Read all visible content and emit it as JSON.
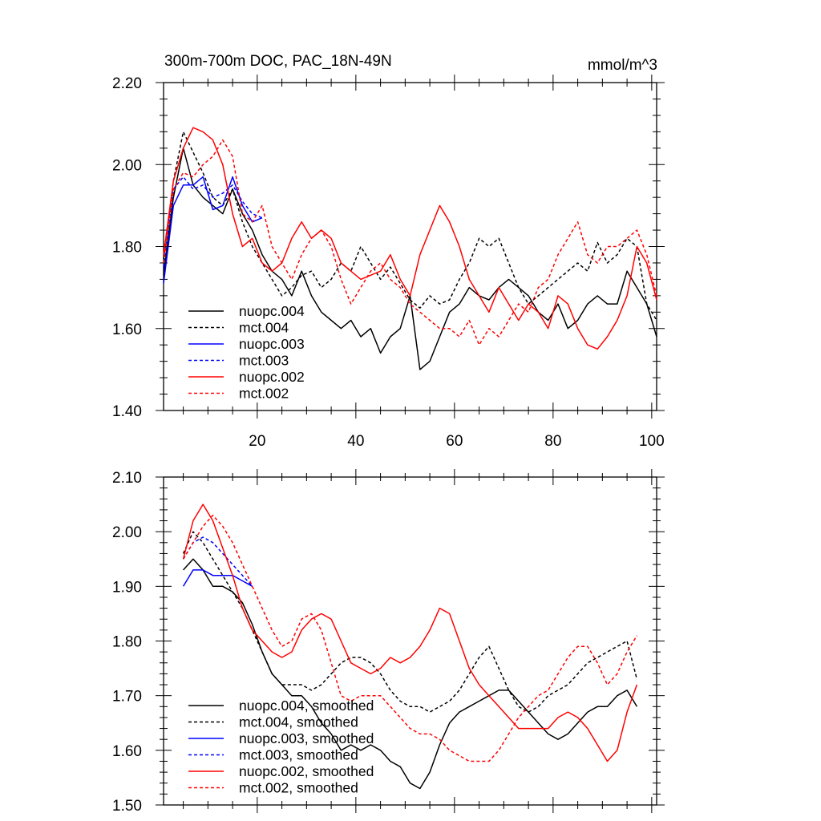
{
  "colors": {
    "black": "#000000",
    "blue": "#0000ff",
    "red": "#ff0000"
  },
  "chart_data": [
    {
      "type": "line",
      "title": "300m-700m DOC, PAC_18N-49N",
      "units": "mmol/m^3",
      "xlim": [
        1,
        101
      ],
      "ylim": [
        1.4,
        2.2
      ],
      "xticks": [
        20,
        40,
        60,
        80,
        100
      ],
      "yticks": [
        "1.40",
        "1.60",
        "1.80",
        "2.00",
        "2.20"
      ],
      "legend_position": "bottom-left",
      "series": [
        {
          "name": "nuopc.004",
          "color": "#000000",
          "dash": false,
          "x": [
            1,
            3,
            5,
            7,
            9,
            11,
            13,
            15,
            17,
            19,
            21,
            23,
            25,
            27,
            29,
            31,
            33,
            35,
            37,
            39,
            41,
            43,
            45,
            47,
            49,
            51,
            53,
            55,
            57,
            59,
            61,
            63,
            65,
            67,
            69,
            71,
            73,
            75,
            77,
            79,
            81,
            83,
            85,
            87,
            89,
            91,
            93,
            95,
            97,
            99,
            101
          ],
          "y": [
            1.73,
            1.92,
            2.04,
            1.95,
            1.92,
            1.9,
            1.88,
            1.94,
            1.88,
            1.84,
            1.78,
            1.74,
            1.72,
            1.68,
            1.74,
            1.68,
            1.64,
            1.62,
            1.6,
            1.62,
            1.58,
            1.6,
            1.54,
            1.58,
            1.6,
            1.68,
            1.5,
            1.52,
            1.58,
            1.64,
            1.66,
            1.7,
            1.68,
            1.67,
            1.7,
            1.72,
            1.7,
            1.68,
            1.64,
            1.62,
            1.66,
            1.6,
            1.62,
            1.66,
            1.68,
            1.66,
            1.66,
            1.74,
            1.7,
            1.66,
            1.58
          ]
        },
        {
          "name": "mct.004",
          "color": "#000000",
          "dash": true,
          "x": [
            1,
            3,
            5,
            7,
            9,
            11,
            13,
            15,
            17,
            19,
            21,
            23,
            25,
            27,
            29,
            31,
            33,
            35,
            37,
            39,
            41,
            43,
            45,
            47,
            49,
            51,
            53,
            55,
            57,
            59,
            61,
            63,
            65,
            67,
            69,
            71,
            73,
            75,
            77,
            79,
            81,
            83,
            85,
            87,
            89,
            91,
            93,
            95,
            97,
            99,
            101
          ],
          "y": [
            1.77,
            1.96,
            2.08,
            2.03,
            1.98,
            1.92,
            1.9,
            1.94,
            1.86,
            1.8,
            1.76,
            1.72,
            1.68,
            1.7,
            1.73,
            1.74,
            1.7,
            1.72,
            1.76,
            1.74,
            1.8,
            1.76,
            1.72,
            1.75,
            1.71,
            1.67,
            1.65,
            1.68,
            1.66,
            1.67,
            1.72,
            1.76,
            1.82,
            1.8,
            1.82,
            1.76,
            1.7,
            1.66,
            1.68,
            1.7,
            1.72,
            1.74,
            1.76,
            1.74,
            1.81,
            1.76,
            1.78,
            1.82,
            1.8,
            1.66,
            1.62
          ]
        },
        {
          "name": "nuopc.003",
          "color": "#0000ff",
          "dash": false,
          "x": [
            1,
            3,
            5,
            7,
            9,
            11,
            13,
            15,
            17,
            19,
            21
          ],
          "y": [
            1.71,
            1.9,
            1.95,
            1.95,
            1.97,
            1.89,
            1.9,
            1.97,
            1.9,
            1.86,
            1.87
          ]
        },
        {
          "name": "mct.003",
          "color": "#0000ff",
          "dash": true,
          "x": [
            1,
            3,
            5,
            7,
            9,
            11,
            13,
            15,
            17,
            19,
            21
          ],
          "y": [
            1.75,
            1.94,
            1.97,
            1.94,
            1.95,
            1.92,
            1.93,
            1.95,
            1.91,
            1.88,
            1.87
          ]
        },
        {
          "name": "nuopc.002",
          "color": "#ff0000",
          "dash": false,
          "x": [
            1,
            3,
            5,
            7,
            9,
            11,
            13,
            15,
            17,
            19,
            21,
            23,
            25,
            27,
            29,
            31,
            33,
            35,
            37,
            39,
            41,
            43,
            45,
            47,
            49,
            51,
            53,
            55,
            57,
            59,
            61,
            63,
            65,
            67,
            69,
            71,
            73,
            75,
            77,
            79,
            81,
            83,
            85,
            87,
            89,
            91,
            93,
            95,
            97,
            99,
            101
          ],
          "y": [
            1.78,
            1.96,
            2.04,
            2.09,
            2.08,
            2.06,
            2.0,
            1.88,
            1.8,
            1.82,
            1.76,
            1.74,
            1.76,
            1.82,
            1.86,
            1.82,
            1.84,
            1.82,
            1.76,
            1.74,
            1.72,
            1.73,
            1.74,
            1.78,
            1.72,
            1.68,
            1.78,
            1.84,
            1.9,
            1.86,
            1.8,
            1.72,
            1.68,
            1.64,
            1.7,
            1.66,
            1.62,
            1.66,
            1.64,
            1.6,
            1.68,
            1.66,
            1.6,
            1.56,
            1.55,
            1.58,
            1.62,
            1.68,
            1.8,
            1.76,
            1.67
          ]
        },
        {
          "name": "mct.002",
          "color": "#ff0000",
          "dash": false,
          "dashed": true,
          "x": [
            1,
            3,
            5,
            7,
            9,
            11,
            13,
            15,
            17,
            19,
            21,
            23,
            25,
            27,
            29,
            31,
            33,
            35,
            37,
            39,
            41,
            43,
            45,
            47,
            49,
            51,
            53,
            55,
            57,
            59,
            61,
            63,
            65,
            67,
            69,
            71,
            73,
            75,
            77,
            79,
            81,
            83,
            85,
            87,
            89,
            91,
            93,
            95,
            97,
            99,
            101
          ],
          "y": [
            1.76,
            1.94,
            1.98,
            1.97,
            2.0,
            2.02,
            2.06,
            2.02,
            1.88,
            1.86,
            1.9,
            1.8,
            1.76,
            1.72,
            1.78,
            1.82,
            1.84,
            1.8,
            1.72,
            1.66,
            1.7,
            1.74,
            1.76,
            1.72,
            1.7,
            1.66,
            1.64,
            1.62,
            1.6,
            1.6,
            1.58,
            1.62,
            1.56,
            1.6,
            1.58,
            1.62,
            1.66,
            1.64,
            1.7,
            1.72,
            1.78,
            1.82,
            1.86,
            1.78,
            1.76,
            1.8,
            1.8,
            1.82,
            1.84,
            1.78,
            1.68
          ]
        }
      ]
    },
    {
      "type": "line",
      "title": "",
      "xlim": [
        1,
        101
      ],
      "ylim": [
        1.5,
        2.1
      ],
      "yticks": [
        "1.50",
        "1.60",
        "1.70",
        "1.80",
        "1.90",
        "2.00",
        "2.10"
      ],
      "legend_position": "bottom-left",
      "series": [
        {
          "name": "nuopc.004, smoothed",
          "color": "#000000",
          "dash": false,
          "x": [
            5,
            7,
            9,
            11,
            13,
            15,
            17,
            19,
            21,
            23,
            25,
            27,
            29,
            31,
            33,
            35,
            37,
            39,
            41,
            43,
            45,
            47,
            49,
            51,
            53,
            55,
            57,
            59,
            61,
            63,
            65,
            67,
            69,
            71,
            73,
            75,
            77,
            79,
            81,
            83,
            85,
            87,
            89,
            91,
            93,
            95,
            97
          ],
          "y": [
            1.93,
            1.95,
            1.93,
            1.9,
            1.9,
            1.89,
            1.87,
            1.83,
            1.78,
            1.74,
            1.72,
            1.7,
            1.7,
            1.68,
            1.65,
            1.63,
            1.6,
            1.61,
            1.6,
            1.61,
            1.6,
            1.58,
            1.57,
            1.54,
            1.53,
            1.56,
            1.61,
            1.65,
            1.67,
            1.68,
            1.69,
            1.7,
            1.71,
            1.71,
            1.69,
            1.67,
            1.65,
            1.63,
            1.62,
            1.63,
            1.65,
            1.67,
            1.68,
            1.68,
            1.7,
            1.71,
            1.68
          ]
        },
        {
          "name": "mct.004, smoothed",
          "color": "#000000",
          "dash": true,
          "x": [
            5,
            7,
            9,
            11,
            13,
            15,
            17,
            19,
            21,
            23,
            25,
            27,
            29,
            31,
            33,
            35,
            37,
            39,
            41,
            43,
            45,
            47,
            49,
            51,
            53,
            55,
            57,
            59,
            61,
            63,
            65,
            67,
            69,
            71,
            73,
            75,
            77,
            79,
            81,
            83,
            85,
            87,
            89,
            91,
            93,
            95,
            97
          ],
          "y": [
            1.96,
            2.0,
            1.98,
            1.95,
            1.92,
            1.89,
            1.86,
            1.82,
            1.78,
            1.74,
            1.72,
            1.72,
            1.72,
            1.71,
            1.72,
            1.74,
            1.76,
            1.77,
            1.77,
            1.76,
            1.74,
            1.71,
            1.69,
            1.68,
            1.68,
            1.67,
            1.68,
            1.69,
            1.71,
            1.74,
            1.77,
            1.79,
            1.75,
            1.71,
            1.68,
            1.67,
            1.68,
            1.7,
            1.71,
            1.72,
            1.74,
            1.76,
            1.77,
            1.78,
            1.79,
            1.8,
            1.73
          ]
        },
        {
          "name": "nuopc.003, smoothed",
          "color": "#0000ff",
          "dash": false,
          "x": [
            5,
            7,
            9,
            11,
            13,
            15,
            17,
            19
          ],
          "y": [
            1.9,
            1.93,
            1.93,
            1.92,
            1.92,
            1.92,
            1.91,
            1.9
          ]
        },
        {
          "name": "mct.003, smoothed",
          "color": "#0000ff",
          "dash": true,
          "x": [
            5,
            7,
            9,
            11,
            13,
            15,
            17,
            19
          ],
          "y": [
            1.95,
            1.98,
            1.99,
            1.98,
            1.96,
            1.94,
            1.92,
            1.9
          ]
        },
        {
          "name": "nuopc.002, smoothed",
          "color": "#ff0000",
          "dash": false,
          "x": [
            5,
            7,
            9,
            11,
            13,
            15,
            17,
            19,
            21,
            23,
            25,
            27,
            29,
            31,
            33,
            35,
            37,
            39,
            41,
            43,
            45,
            47,
            49,
            51,
            53,
            55,
            57,
            59,
            61,
            63,
            65,
            67,
            69,
            71,
            73,
            75,
            77,
            79,
            81,
            83,
            85,
            87,
            89,
            91,
            93,
            95,
            97
          ],
          "y": [
            1.95,
            2.02,
            2.05,
            2.02,
            1.97,
            1.92,
            1.86,
            1.82,
            1.8,
            1.78,
            1.77,
            1.78,
            1.82,
            1.84,
            1.85,
            1.84,
            1.8,
            1.76,
            1.75,
            1.74,
            1.75,
            1.77,
            1.76,
            1.77,
            1.79,
            1.82,
            1.86,
            1.85,
            1.8,
            1.75,
            1.72,
            1.7,
            1.68,
            1.66,
            1.64,
            1.64,
            1.64,
            1.64,
            1.66,
            1.67,
            1.66,
            1.64,
            1.61,
            1.58,
            1.6,
            1.67,
            1.72
          ]
        },
        {
          "name": "mct.002, smoothed",
          "color": "#ff0000",
          "dash": true,
          "x": [
            5,
            7,
            9,
            11,
            13,
            15,
            17,
            19,
            21,
            23,
            25,
            27,
            29,
            31,
            33,
            35,
            37,
            39,
            41,
            43,
            45,
            47,
            49,
            51,
            53,
            55,
            57,
            59,
            61,
            63,
            65,
            67,
            69,
            71,
            73,
            75,
            77,
            79,
            81,
            83,
            85,
            87,
            89,
            91,
            93,
            95,
            97
          ],
          "y": [
            1.95,
            1.98,
            2.01,
            2.03,
            2.01,
            1.98,
            1.94,
            1.9,
            1.86,
            1.82,
            1.79,
            1.8,
            1.84,
            1.85,
            1.82,
            1.76,
            1.7,
            1.69,
            1.7,
            1.7,
            1.7,
            1.68,
            1.66,
            1.64,
            1.63,
            1.63,
            1.62,
            1.6,
            1.59,
            1.58,
            1.58,
            1.58,
            1.6,
            1.63,
            1.66,
            1.68,
            1.7,
            1.71,
            1.74,
            1.77,
            1.79,
            1.79,
            1.76,
            1.72,
            1.74,
            1.78,
            1.81
          ]
        }
      ]
    }
  ]
}
